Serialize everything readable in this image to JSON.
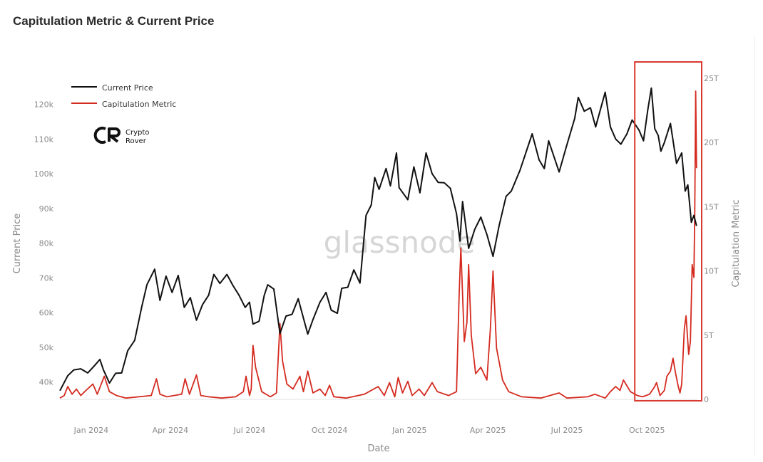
{
  "title": "Capitulation Metric & Current Price",
  "watermark": "glassnode",
  "logo": {
    "line1": "Crypto",
    "line2": "Rover"
  },
  "colors": {
    "price": "#111111",
    "metric": "#d42a1f",
    "highlight": "#d93a30",
    "axis_text": "#8a8a8a"
  },
  "chart_data": {
    "type": "line",
    "xlabel": "Date",
    "ylabel": "Current Price",
    "y2label": "Capitulation Metric",
    "x_range": [
      "2023-11-26",
      "2025-11-28"
    ],
    "ylim": [
      35000,
      127500
    ],
    "y2lim": [
      0,
      25000000000000
    ],
    "x_ticks": [
      {
        "date": "2024-01-01",
        "label": "Jan 2024"
      },
      {
        "date": "2024-04-01",
        "label": "Apr 2024"
      },
      {
        "date": "2024-07-01",
        "label": "Jul 2024"
      },
      {
        "date": "2024-10-01",
        "label": "Oct 2024"
      },
      {
        "date": "2025-01-01",
        "label": "Jan 2025"
      },
      {
        "date": "2025-04-01",
        "label": "Apr 2025"
      },
      {
        "date": "2025-07-01",
        "label": "Jul 2025"
      },
      {
        "date": "2025-10-01",
        "label": "Oct 2025"
      }
    ],
    "y_ticks": [
      {
        "value": 40000,
        "label": "40k"
      },
      {
        "value": 50000,
        "label": "50k"
      },
      {
        "value": 60000,
        "label": "60k"
      },
      {
        "value": 70000,
        "label": "70k"
      },
      {
        "value": 80000,
        "label": "80k"
      },
      {
        "value": 90000,
        "label": "90k"
      },
      {
        "value": 100000,
        "label": "100k"
      },
      {
        "value": 110000,
        "label": "110k"
      },
      {
        "value": 120000,
        "label": "120k"
      }
    ],
    "y2_ticks": [
      {
        "value": 0,
        "label": "0"
      },
      {
        "value": 5000000000000,
        "label": "5T"
      },
      {
        "value": 10000000000000,
        "label": "10T"
      },
      {
        "value": 15000000000000,
        "label": "15T"
      },
      {
        "value": 20000000000000,
        "label": "20T"
      },
      {
        "value": 25000000000000,
        "label": "25T"
      }
    ],
    "legend_position": "top-left",
    "grid": false,
    "highlight_range": [
      "2025-09-17",
      "2025-11-28"
    ],
    "series": [
      {
        "name": "Current Price",
        "axis": "left",
        "points": [
          [
            "2023-11-26",
            37500
          ],
          [
            "2023-12-05",
            41800
          ],
          [
            "2023-12-12",
            43500
          ],
          [
            "2023-12-20",
            43800
          ],
          [
            "2023-12-28",
            42600
          ],
          [
            "2024-01-04",
            44500
          ],
          [
            "2024-01-11",
            46500
          ],
          [
            "2024-01-15",
            43500
          ],
          [
            "2024-01-22",
            39700
          ],
          [
            "2024-01-29",
            42500
          ],
          [
            "2024-02-05",
            42600
          ],
          [
            "2024-02-12",
            49000
          ],
          [
            "2024-02-20",
            52000
          ],
          [
            "2024-02-28",
            61500
          ],
          [
            "2024-03-05",
            68000
          ],
          [
            "2024-03-14",
            72500
          ],
          [
            "2024-03-20",
            63500
          ],
          [
            "2024-03-27",
            70500
          ],
          [
            "2024-04-03",
            65800
          ],
          [
            "2024-04-10",
            70700
          ],
          [
            "2024-04-17",
            61500
          ],
          [
            "2024-04-24",
            64300
          ],
          [
            "2024-05-01",
            57800
          ],
          [
            "2024-05-08",
            62300
          ],
          [
            "2024-05-15",
            65000
          ],
          [
            "2024-05-21",
            71000
          ],
          [
            "2024-05-28",
            68400
          ],
          [
            "2024-06-05",
            71000
          ],
          [
            "2024-06-12",
            67800
          ],
          [
            "2024-06-19",
            65000
          ],
          [
            "2024-06-26",
            61500
          ],
          [
            "2024-07-01",
            63000
          ],
          [
            "2024-07-05",
            56700
          ],
          [
            "2024-07-12",
            57500
          ],
          [
            "2024-07-18",
            65000
          ],
          [
            "2024-07-22",
            68000
          ],
          [
            "2024-07-29",
            66800
          ],
          [
            "2024-08-05",
            54000
          ],
          [
            "2024-08-12",
            59000
          ],
          [
            "2024-08-19",
            59500
          ],
          [
            "2024-08-26",
            64000
          ],
          [
            "2024-09-02",
            57500
          ],
          [
            "2024-09-06",
            53800
          ],
          [
            "2024-09-12",
            58000
          ],
          [
            "2024-09-20",
            63000
          ],
          [
            "2024-09-27",
            65800
          ],
          [
            "2024-10-03",
            60700
          ],
          [
            "2024-10-10",
            59800
          ],
          [
            "2024-10-15",
            67000
          ],
          [
            "2024-10-22",
            67300
          ],
          [
            "2024-10-29",
            72300
          ],
          [
            "2024-11-05",
            68500
          ],
          [
            "2024-11-12",
            88000
          ],
          [
            "2024-11-18",
            91000
          ],
          [
            "2024-11-22",
            98900
          ],
          [
            "2024-11-27",
            95500
          ],
          [
            "2024-12-05",
            101500
          ],
          [
            "2024-12-10",
            96500
          ],
          [
            "2024-12-17",
            106000
          ],
          [
            "2024-12-20",
            96000
          ],
          [
            "2024-12-30",
            92500
          ],
          [
            "2025-01-06",
            102000
          ],
          [
            "2025-01-13",
            94500
          ],
          [
            "2025-01-20",
            106000
          ],
          [
            "2025-01-27",
            100000
          ],
          [
            "2025-02-03",
            97500
          ],
          [
            "2025-02-10",
            97400
          ],
          [
            "2025-02-17",
            95800
          ],
          [
            "2025-02-24",
            88500
          ],
          [
            "2025-02-28",
            80600
          ],
          [
            "2025-03-03",
            92000
          ],
          [
            "2025-03-10",
            78500
          ],
          [
            "2025-03-17",
            84000
          ],
          [
            "2025-03-24",
            87500
          ],
          [
            "2025-03-31",
            82500
          ],
          [
            "2025-04-07",
            76200
          ],
          [
            "2025-04-14",
            85000
          ],
          [
            "2025-04-22",
            93500
          ],
          [
            "2025-04-28",
            95000
          ],
          [
            "2025-05-08",
            101000
          ],
          [
            "2025-05-12",
            104000
          ],
          [
            "2025-05-22",
            111500
          ],
          [
            "2025-05-30",
            104000
          ],
          [
            "2025-06-05",
            101500
          ],
          [
            "2025-06-10",
            109500
          ],
          [
            "2025-06-22",
            100500
          ],
          [
            "2025-06-30",
            107500
          ],
          [
            "2025-07-10",
            116000
          ],
          [
            "2025-07-14",
            122000
          ],
          [
            "2025-07-21",
            118000
          ],
          [
            "2025-07-28",
            119000
          ],
          [
            "2025-08-03",
            113500
          ],
          [
            "2025-08-14",
            123500
          ],
          [
            "2025-08-20",
            113500
          ],
          [
            "2025-08-26",
            110000
          ],
          [
            "2025-09-01",
            108500
          ],
          [
            "2025-09-08",
            111500
          ],
          [
            "2025-09-14",
            115500
          ],
          [
            "2025-09-22",
            112500
          ],
          [
            "2025-09-27",
            109500
          ],
          [
            "2025-10-02",
            118500
          ],
          [
            "2025-10-06",
            124700
          ],
          [
            "2025-10-10",
            113000
          ],
          [
            "2025-10-14",
            111000
          ],
          [
            "2025-10-17",
            106500
          ],
          [
            "2025-10-21",
            109000
          ],
          [
            "2025-10-28",
            114500
          ],
          [
            "2025-11-04",
            103000
          ],
          [
            "2025-11-10",
            106000
          ],
          [
            "2025-11-14",
            95000
          ],
          [
            "2025-11-17",
            96800
          ],
          [
            "2025-11-21",
            86000
          ],
          [
            "2025-11-24",
            88000
          ],
          [
            "2025-11-27",
            85000
          ]
        ]
      },
      {
        "name": "Capitulation Metric",
        "axis": "right",
        "points": [
          [
            "2023-11-26",
            100000000000
          ],
          [
            "2023-12-01",
            300000000000
          ],
          [
            "2023-12-05",
            1000000000000
          ],
          [
            "2023-12-10",
            400000000000
          ],
          [
            "2023-12-15",
            800000000000
          ],
          [
            "2023-12-20",
            300000000000
          ],
          [
            "2023-12-26",
            700000000000
          ],
          [
            "2024-01-03",
            1200000000000
          ],
          [
            "2024-01-08",
            400000000000
          ],
          [
            "2024-01-12",
            1100000000000
          ],
          [
            "2024-01-16",
            1800000000000
          ],
          [
            "2024-01-22",
            600000000000
          ],
          [
            "2024-01-30",
            300000000000
          ],
          [
            "2024-02-10",
            100000000000
          ],
          [
            "2024-02-25",
            200000000000
          ],
          [
            "2024-03-10",
            300000000000
          ],
          [
            "2024-03-16",
            1600000000000
          ],
          [
            "2024-03-20",
            400000000000
          ],
          [
            "2024-03-28",
            200000000000
          ],
          [
            "2024-04-14",
            400000000000
          ],
          [
            "2024-04-18",
            1600000000000
          ],
          [
            "2024-04-23",
            400000000000
          ],
          [
            "2024-05-01",
            1900000000000
          ],
          [
            "2024-05-06",
            300000000000
          ],
          [
            "2024-05-15",
            200000000000
          ],
          [
            "2024-05-30",
            100000000000
          ],
          [
            "2024-06-15",
            200000000000
          ],
          [
            "2024-06-24",
            600000000000
          ],
          [
            "2024-06-27",
            1800000000000
          ],
          [
            "2024-07-01",
            300000000000
          ],
          [
            "2024-07-03",
            800000000000
          ],
          [
            "2024-07-05",
            4200000000000
          ],
          [
            "2024-07-08",
            2500000000000
          ],
          [
            "2024-07-15",
            600000000000
          ],
          [
            "2024-07-25",
            200000000000
          ],
          [
            "2024-08-01",
            500000000000
          ],
          [
            "2024-08-05",
            5900000000000
          ],
          [
            "2024-08-08",
            3000000000000
          ],
          [
            "2024-08-13",
            1200000000000
          ],
          [
            "2024-08-20",
            800000000000
          ],
          [
            "2024-08-28",
            1800000000000
          ],
          [
            "2024-09-01",
            600000000000
          ],
          [
            "2024-09-06",
            2200000000000
          ],
          [
            "2024-09-12",
            500000000000
          ],
          [
            "2024-09-20",
            800000000000
          ],
          [
            "2024-09-26",
            300000000000
          ],
          [
            "2024-10-01",
            1100000000000
          ],
          [
            "2024-10-06",
            200000000000
          ],
          [
            "2024-10-20",
            100000000000
          ],
          [
            "2024-11-10",
            400000000000
          ],
          [
            "2024-11-26",
            1000000000000
          ],
          [
            "2024-12-03",
            300000000000
          ],
          [
            "2024-12-09",
            1300000000000
          ],
          [
            "2024-12-15",
            200000000000
          ],
          [
            "2024-12-19",
            1700000000000
          ],
          [
            "2024-12-24",
            500000000000
          ],
          [
            "2024-12-30",
            1400000000000
          ],
          [
            "2025-01-04",
            300000000000
          ],
          [
            "2025-01-12",
            800000000000
          ],
          [
            "2025-01-18",
            300000000000
          ],
          [
            "2025-01-27",
            1300000000000
          ],
          [
            "2025-02-02",
            600000000000
          ],
          [
            "2025-02-15",
            300000000000
          ],
          [
            "2025-02-24",
            600000000000
          ],
          [
            "2025-02-27",
            8000000000000
          ],
          [
            "2025-03-01",
            11800000000000
          ],
          [
            "2025-03-05",
            4500000000000
          ],
          [
            "2025-03-08",
            6000000000000
          ],
          [
            "2025-03-10",
            10500000000000
          ],
          [
            "2025-03-13",
            5000000000000
          ],
          [
            "2025-03-18",
            2000000000000
          ],
          [
            "2025-03-24",
            2500000000000
          ],
          [
            "2025-03-31",
            1500000000000
          ],
          [
            "2025-04-04",
            5500000000000
          ],
          [
            "2025-04-07",
            10000000000000
          ],
          [
            "2025-04-11",
            4000000000000
          ],
          [
            "2025-04-18",
            1500000000000
          ],
          [
            "2025-04-25",
            600000000000
          ],
          [
            "2025-05-10",
            200000000000
          ],
          [
            "2025-06-01",
            100000000000
          ],
          [
            "2025-06-22",
            500000000000
          ],
          [
            "2025-07-01",
            100000000000
          ],
          [
            "2025-07-25",
            200000000000
          ],
          [
            "2025-08-02",
            400000000000
          ],
          [
            "2025-08-14",
            100000000000
          ],
          [
            "2025-08-20",
            600000000000
          ],
          [
            "2025-08-26",
            1000000000000
          ],
          [
            "2025-08-31",
            700000000000
          ],
          [
            "2025-09-04",
            1500000000000
          ],
          [
            "2025-09-12",
            600000000000
          ],
          [
            "2025-09-20",
            300000000000
          ],
          [
            "2025-09-26",
            200000000000
          ],
          [
            "2025-10-04",
            400000000000
          ],
          [
            "2025-10-10",
            1000000000000
          ],
          [
            "2025-10-12",
            1300000000000
          ],
          [
            "2025-10-16",
            300000000000
          ],
          [
            "2025-10-21",
            700000000000
          ],
          [
            "2025-10-24",
            1800000000000
          ],
          [
            "2025-10-28",
            2200000000000
          ],
          [
            "2025-10-31",
            3200000000000
          ],
          [
            "2025-11-03",
            2000000000000
          ],
          [
            "2025-11-06",
            1000000000000
          ],
          [
            "2025-11-08",
            500000000000
          ],
          [
            "2025-11-10",
            1200000000000
          ],
          [
            "2025-11-13",
            5500000000000
          ],
          [
            "2025-11-15",
            6500000000000
          ],
          [
            "2025-11-18",
            3500000000000
          ],
          [
            "2025-11-20",
            4500000000000
          ],
          [
            "2025-11-22",
            10500000000000
          ],
          [
            "2025-11-24",
            9500000000000
          ],
          [
            "2025-11-25",
            14500000000000
          ],
          [
            "2025-11-26",
            24000000000000
          ],
          [
            "2025-11-27",
            18000000000000
          ]
        ]
      }
    ]
  }
}
